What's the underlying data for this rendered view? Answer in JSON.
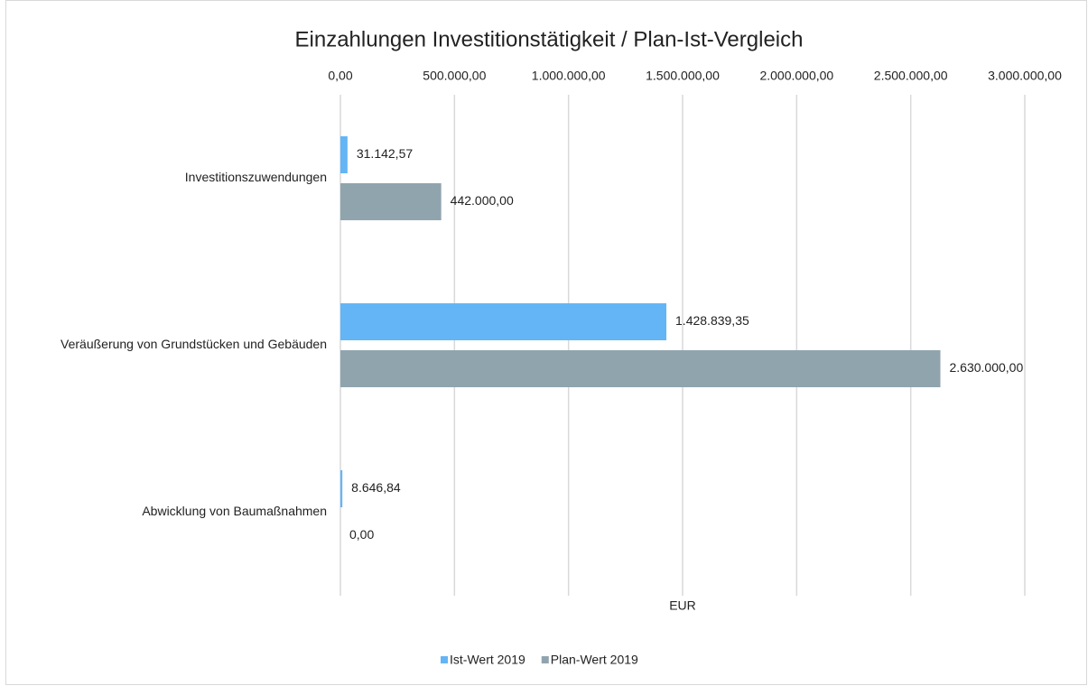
{
  "chart_data": {
    "type": "hbar",
    "title": "Einzahlungen Investitionstätigkeit / Plan-Ist-Vergleich",
    "xlabel": "EUR",
    "categories": [
      "Investitionszuwendungen",
      "Veräußerung von Grundstücken und Gebäuden",
      "Abwicklung von Baumaßnahmen"
    ],
    "series": [
      {
        "name": "Ist-Wert 2019",
        "color": "#64b5f6",
        "values": [
          31142.57,
          1428839.35,
          8646.84
        ],
        "value_labels": [
          "31.142,57",
          "1.428.839,35",
          "8.646,84"
        ]
      },
      {
        "name": "Plan-Wert 2019",
        "color": "#90a4ae",
        "values": [
          442000,
          2630000,
          0
        ],
        "value_labels": [
          "442.000,00",
          "2.630.000,00",
          "0,00"
        ]
      }
    ],
    "xlim": [
      0,
      3000000
    ],
    "xticks": [
      {
        "value": 0,
        "label": "0,00"
      },
      {
        "value": 500000,
        "label": "500.000,00"
      },
      {
        "value": 1000000,
        "label": "1.000.000,00"
      },
      {
        "value": 1500000,
        "label": "1.500.000,00"
      },
      {
        "value": 2000000,
        "label": "2.000.000,00"
      },
      {
        "value": 2500000,
        "label": "2.500.000,00"
      },
      {
        "value": 3000000,
        "label": "3.000.000,00"
      }
    ],
    "grid": true,
    "legend": "bottom"
  }
}
